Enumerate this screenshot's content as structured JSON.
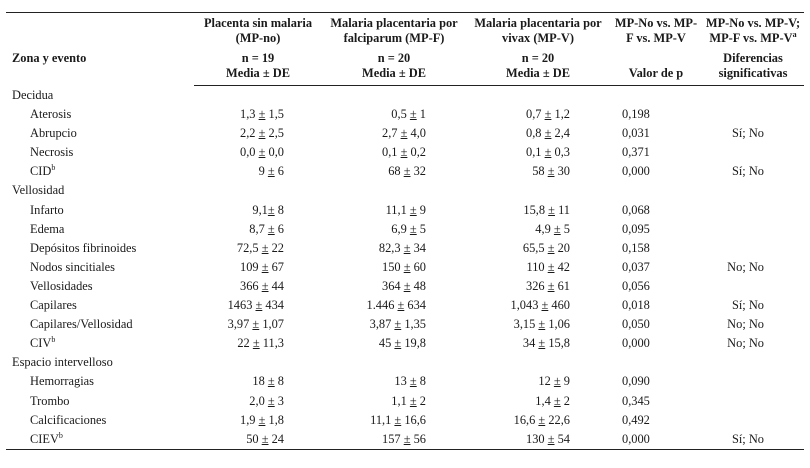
{
  "header": {
    "zone_event": "Zona y evento",
    "col_mpno_title": "Placenta sin malaria (MP-no)",
    "col_mpf_title": "Malaria placentaria por falciparum (MP-F)",
    "col_mpv_title": "Malaria placentaria por vivax (MP-V)",
    "col_p_title": "MP-No vs. MP-F vs. MP-V",
    "col_diff_title": "MP-No vs. MP-V; MP-F vs. MP-V",
    "col_diff_sup": "a",
    "col_mpno_n": "n = 19",
    "col_mpf_n": "n = 20",
    "col_mpv_n": "n = 20",
    "col_mpno_stat": "Media ± DE",
    "col_mpf_stat": "Media ± DE",
    "col_mpv_stat": "Media ± DE",
    "col_p_stat": "Valor de p",
    "col_diff_stat": "Diferencias significativas"
  },
  "sections": [
    {
      "title": "Decidua",
      "rows": [
        {
          "event": "Aterosis",
          "sup": "",
          "mpno": "1,3 ± 1,5",
          "mpf": "0,5 ± 1",
          "mpv": "0,7 ± 1,2",
          "p": "0,198",
          "diff": ""
        },
        {
          "event": "Abrupcio",
          "sup": "",
          "mpno": "2,2 ± 2,5",
          "mpf": "2,7 ± 4,0",
          "mpv": "0,8 ± 2,4",
          "p": "0,031",
          "diff": "Sí; No"
        },
        {
          "event": "Necrosis",
          "sup": "",
          "mpno": "0,0 ± 0,0",
          "mpf": "0,1 ± 0,2",
          "mpv": "0,1 ± 0,3",
          "p": "0,371",
          "diff": ""
        },
        {
          "event": "CID",
          "sup": "b",
          "mpno": "9 ± 6",
          "mpf": "68 ± 32",
          "mpv": "58 ± 30",
          "p": "0,000",
          "diff": "Sí; No"
        }
      ]
    },
    {
      "title": "Vellosidad",
      "rows": [
        {
          "event": "Infarto",
          "sup": "",
          "mpno": "9,1± 8",
          "mpf": "11,1 ± 9",
          "mpv": "15,8 ± 11",
          "p": "0,068",
          "diff": ""
        },
        {
          "event": "Edema",
          "sup": "",
          "mpno": "8,7 ± 6",
          "mpf": "6,9 ± 5",
          "mpv": "4,9 ± 5",
          "p": "0,095",
          "diff": ""
        },
        {
          "event": "Depósitos fibrinoides",
          "sup": "",
          "mpno": "72,5 ± 22",
          "mpf": "82,3 ± 34",
          "mpv": "65,5 ± 20",
          "p": "0,158",
          "diff": ""
        },
        {
          "event": "Nodos sincitiales",
          "sup": "",
          "mpno": "109 ± 67",
          "mpf": "150 ± 60",
          "mpv": "110 ± 42",
          "p": "0,037",
          "diff": "No; No"
        },
        {
          "event": "Vellosidades",
          "sup": "",
          "mpno": "366 ± 44",
          "mpf": "364 ± 48",
          "mpv": "326 ± 61",
          "p": "0,056",
          "diff": ""
        },
        {
          "event": "Capilares",
          "sup": "",
          "mpno": "1463 ± 434",
          "mpf": "1.446 ± 634",
          "mpv": "1,043 ± 460",
          "p": "0,018",
          "diff": "Sí; No"
        },
        {
          "event": "Capilares/Vellosidad",
          "sup": "",
          "mpno": "3,97 ± 1,07",
          "mpf": "3,87 ± 1,35",
          "mpv": "3,15 ± 1,06",
          "p": "0,050",
          "diff": "No; No"
        },
        {
          "event": "CIV",
          "sup": "b",
          "mpno": "22 ± 11,3",
          "mpf": "45 ± 19,8",
          "mpv": "34 ± 15,8",
          "p": "0,000",
          "diff": "No; No"
        }
      ]
    },
    {
      "title": "Espacio intervelloso",
      "rows": [
        {
          "event": "Hemorragias",
          "sup": "",
          "mpno": "18 ± 8",
          "mpf": "13 ± 8",
          "mpv": "12 ± 9",
          "p": "0,090",
          "diff": ""
        },
        {
          "event": "Trombo",
          "sup": "",
          "mpno": "2,0 ± 3",
          "mpf": "1,1 ± 2",
          "mpv": "1,4 ± 2",
          "p": "0,345",
          "diff": ""
        },
        {
          "event": "Calcificaciones",
          "sup": "",
          "mpno": "1,9 ± 1,8",
          "mpf": "11,1 ± 16,6",
          "mpv": "16,6 ± 22,6",
          "p": "0,492",
          "diff": ""
        },
        {
          "event": "CIEV",
          "sup": "b",
          "mpno": "50 ± 24",
          "mpf": "157 ± 56",
          "mpv": "130 ± 54",
          "p": "0,000",
          "diff": "Sí; No"
        }
      ]
    }
  ]
}
